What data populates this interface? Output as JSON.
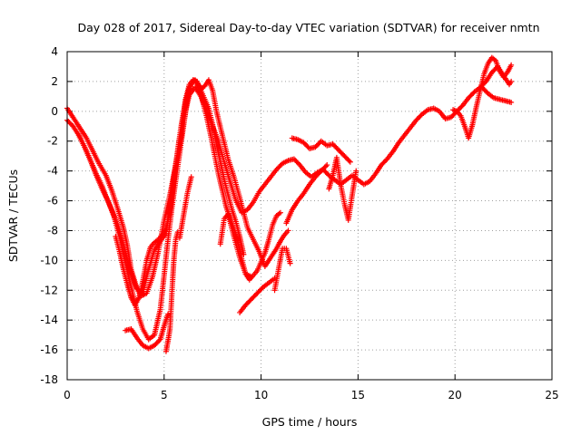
{
  "chart_data": {
    "type": "scatter",
    "title": "Day 028 of 2017, Sidereal Day-to-day VTEC variation (SDTVAR) for receiver nmtn",
    "xlabel": "GPS time / hours",
    "ylabel": "SDTVAR / TECUs",
    "xlim": [
      0,
      25
    ],
    "ylim": [
      -18,
      4
    ],
    "xticks": [
      0,
      5,
      10,
      15,
      20,
      25
    ],
    "yticks": [
      -18,
      -16,
      -14,
      -12,
      -10,
      -8,
      -6,
      -4,
      -2,
      0,
      2,
      4
    ],
    "grid": true,
    "marker": "+",
    "color": "#ff0000",
    "series": [
      {
        "x": [
          0.0,
          0.2,
          0.5,
          0.8,
          1.0,
          1.3,
          1.6,
          2.0,
          2.3,
          2.6,
          2.9,
          3.1,
          3.3,
          3.6,
          3.9,
          4.2,
          4.5,
          4.8,
          5.1,
          5.3,
          5.6,
          5.9,
          6.1,
          6.3,
          6.5,
          6.7,
          6.9,
          7.1,
          7.3,
          7.5,
          7.7,
          8.0,
          8.3,
          8.6,
          8.9,
          9.1,
          9.3,
          9.6,
          9.9,
          10.2,
          10.5,
          10.8,
          11.0,
          11.2,
          11.4
        ],
        "y": [
          0.2,
          -0.2,
          -0.8,
          -1.4,
          -1.8,
          -2.6,
          -3.4,
          -4.3,
          -5.3,
          -6.5,
          -7.8,
          -9.0,
          -10.6,
          -11.9,
          -12.2,
          -10.6,
          -9.3,
          -8.7,
          -8.2,
          -6.1,
          -3.5,
          -1.2,
          0.8,
          1.8,
          2.1,
          1.9,
          1.5,
          1.7,
          2.1,
          1.4,
          0.0,
          -1.6,
          -3.2,
          -4.4,
          -5.8,
          -6.8,
          -7.8,
          -8.6,
          -9.4,
          -10.4,
          -9.8,
          -9.2,
          -8.7,
          -8.3,
          -8.0
        ]
      },
      {
        "x": [
          0.0,
          0.3,
          0.6,
          0.9,
          1.2,
          1.5,
          1.8,
          2.0,
          2.3,
          2.6,
          2.9,
          3.2,
          3.5,
          3.8,
          4.1,
          4.4,
          4.7,
          5.0,
          5.3,
          5.6,
          5.9,
          6.1,
          6.3,
          6.6,
          6.9,
          7.2,
          7.5,
          7.8,
          8.1,
          8.4,
          8.7,
          9.0,
          9.3,
          9.6,
          9.9,
          10.2,
          10.5,
          10.8,
          11.1,
          11.4,
          11.7,
          12.0,
          12.3,
          12.6,
          12.9,
          13.2,
          13.5,
          13.8,
          14.1,
          14.4,
          14.7,
          15.0,
          15.3,
          15.6,
          15.9,
          16.2,
          16.5,
          16.8,
          17.1,
          17.4,
          17.7,
          18.0,
          18.3,
          18.6,
          18.9,
          19.2,
          19.5,
          19.8,
          20.1,
          20.4,
          20.7,
          21.0,
          21.3,
          21.6,
          21.9,
          22.2,
          22.5,
          22.8,
          22.9
        ],
        "y": [
          -0.6,
          -1.0,
          -1.6,
          -2.4,
          -3.3,
          -4.2,
          -5.0,
          -5.7,
          -6.6,
          -7.6,
          -8.9,
          -10.4,
          -11.6,
          -12.4,
          -12.2,
          -11.1,
          -9.4,
          -7.3,
          -5.6,
          -3.6,
          -1.6,
          0.0,
          1.1,
          1.6,
          1.0,
          0.0,
          -1.0,
          -2.0,
          -3.4,
          -4.7,
          -6.0,
          -6.8,
          -6.6,
          -6.1,
          -5.4,
          -4.9,
          -4.4,
          -3.9,
          -3.5,
          -3.3,
          -3.2,
          -3.6,
          -4.1,
          -4.4,
          -4.1,
          -3.9,
          -4.3,
          -4.6,
          -4.9,
          -4.6,
          -4.3,
          -4.6,
          -4.9,
          -4.7,
          -4.2,
          -3.6,
          -3.2,
          -2.7,
          -2.1,
          -1.6,
          -1.1,
          -0.6,
          -0.2,
          0.1,
          0.2,
          0.0,
          -0.5,
          -0.4,
          0.0,
          0.4,
          0.9,
          1.3,
          1.6,
          2.0,
          2.6,
          3.0,
          2.4,
          1.8,
          2.0
        ]
      },
      {
        "x": [
          0.6,
          0.9,
          1.2,
          1.5,
          1.8,
          2.1,
          2.4,
          2.7,
          3.0,
          3.3,
          3.6,
          3.9,
          4.2,
          4.5,
          4.8,
          5.0,
          5.2,
          5.4,
          5.6,
          5.8,
          6.0,
          6.2,
          6.4,
          6.6,
          6.8,
          7.0,
          7.2,
          7.4,
          7.6,
          7.8,
          8.0,
          8.2,
          8.4,
          8.6,
          8.8,
          9.0,
          9.2,
          9.4,
          9.6,
          9.8,
          10.0,
          10.2,
          10.4,
          10.6,
          10.8,
          11.0
        ],
        "y": [
          -1.6,
          -2.4,
          -3.3,
          -4.3,
          -5.2,
          -6.0,
          -7.0,
          -8.4,
          -10.1,
          -11.8,
          -13.4,
          -14.6,
          -15.3,
          -15.0,
          -13.3,
          -11.0,
          -8.6,
          -6.5,
          -4.6,
          -2.8,
          -1.0,
          0.8,
          1.8,
          2.1,
          1.6,
          0.6,
          -0.4,
          -1.6,
          -2.9,
          -4.2,
          -5.3,
          -6.4,
          -7.2,
          -7.9,
          -8.8,
          -9.9,
          -10.9,
          -11.3,
          -11.0,
          -10.7,
          -10.1,
          -9.5,
          -8.6,
          -7.6,
          -7.0,
          -6.8
        ]
      },
      {
        "x": [
          2.5,
          2.7,
          2.9,
          3.1,
          3.3,
          3.5,
          3.7,
          3.9,
          4.1,
          4.3,
          4.5,
          4.7,
          4.9,
          5.1,
          5.3,
          5.5,
          5.7,
          5.9,
          6.1,
          6.3,
          6.5,
          6.7,
          6.9,
          7.1,
          7.3,
          7.5,
          7.7,
          7.9,
          8.1,
          8.3,
          8.5,
          8.7,
          8.9,
          9.1
        ],
        "y": [
          -8.4,
          -9.4,
          -10.6,
          -11.6,
          -12.5,
          -13.0,
          -12.5,
          -11.4,
          -10.0,
          -9.1,
          -8.8,
          -8.6,
          -8.3,
          -7.9,
          -6.8,
          -4.8,
          -2.6,
          -0.8,
          0.6,
          1.6,
          2.1,
          2.0,
          1.4,
          0.8,
          0.2,
          -0.9,
          -2.2,
          -3.4,
          -4.6,
          -5.6,
          -6.6,
          -7.4,
          -8.4,
          -9.6
        ]
      },
      {
        "x": [
          3.0,
          3.3,
          3.6,
          3.9,
          4.2,
          4.5,
          4.8,
          5.0,
          5.2
        ],
        "y": [
          -14.7,
          -14.6,
          -15.2,
          -15.7,
          -15.9,
          -15.7,
          -15.3,
          -14.4,
          -13.6
        ]
      },
      {
        "x": [
          5.1,
          5.2,
          5.3,
          5.4,
          5.5,
          5.6,
          5.7
        ],
        "y": [
          -16.1,
          -15.4,
          -14.6,
          -12.2,
          -10.0,
          -8.6,
          -8.1
        ]
      },
      {
        "x": [
          5.8,
          6.0,
          6.2,
          6.4
        ],
        "y": [
          -8.5,
          -7.0,
          -5.5,
          -4.4
        ]
      },
      {
        "x": [
          7.9,
          8.1,
          8.3,
          8.6,
          8.9,
          9.2,
          9.5
        ],
        "y": [
          -8.9,
          -7.2,
          -6.9,
          -8.4,
          -9.8,
          -10.9,
          -11.1
        ]
      },
      {
        "x": [
          8.9,
          9.2,
          9.5,
          9.8,
          10.1,
          10.4,
          10.7
        ],
        "y": [
          -13.5,
          -13.0,
          -12.6,
          -12.2,
          -11.8,
          -11.5,
          -11.2
        ]
      },
      {
        "x": [
          10.7,
          10.9,
          11.1,
          11.3,
          11.5
        ],
        "y": [
          -12.0,
          -10.6,
          -9.2,
          -9.2,
          -10.2
        ]
      },
      {
        "x": [
          11.3,
          11.6,
          11.9,
          12.2,
          12.5,
          12.8,
          13.1,
          13.4
        ],
        "y": [
          -7.5,
          -6.6,
          -6.0,
          -5.5,
          -4.9,
          -4.4,
          -4.0,
          -3.6
        ]
      },
      {
        "x": [
          11.6,
          11.9,
          12.2,
          12.5,
          12.8,
          13.1,
          13.4,
          13.7,
          14.0,
          14.3,
          14.6
        ],
        "y": [
          -1.8,
          -1.9,
          -2.1,
          -2.5,
          -2.4,
          -2.0,
          -2.3,
          -2.2,
          -2.6,
          -3.0,
          -3.4
        ]
      },
      {
        "x": [
          13.5,
          13.7,
          13.9,
          14.1,
          14.3,
          14.5,
          14.7,
          14.9
        ],
        "y": [
          -5.2,
          -4.3,
          -3.1,
          -4.9,
          -6.2,
          -7.3,
          -5.6,
          -4.0
        ]
      },
      {
        "x": [
          19.9,
          20.1,
          20.3,
          20.5,
          20.7,
          20.9,
          21.1,
          21.3,
          21.5,
          21.7,
          21.9,
          22.1,
          22.3,
          22.5,
          22.7,
          22.9
        ],
        "y": [
          0.1,
          0.0,
          -0.3,
          -1.0,
          -1.8,
          -0.9,
          0.3,
          1.4,
          2.5,
          3.2,
          3.6,
          3.4,
          2.7,
          2.3,
          2.6,
          3.1
        ]
      },
      {
        "x": [
          21.4,
          21.7,
          22.0,
          22.3,
          22.6,
          22.9
        ],
        "y": [
          1.6,
          1.2,
          0.9,
          0.8,
          0.7,
          0.6
        ]
      }
    ]
  }
}
